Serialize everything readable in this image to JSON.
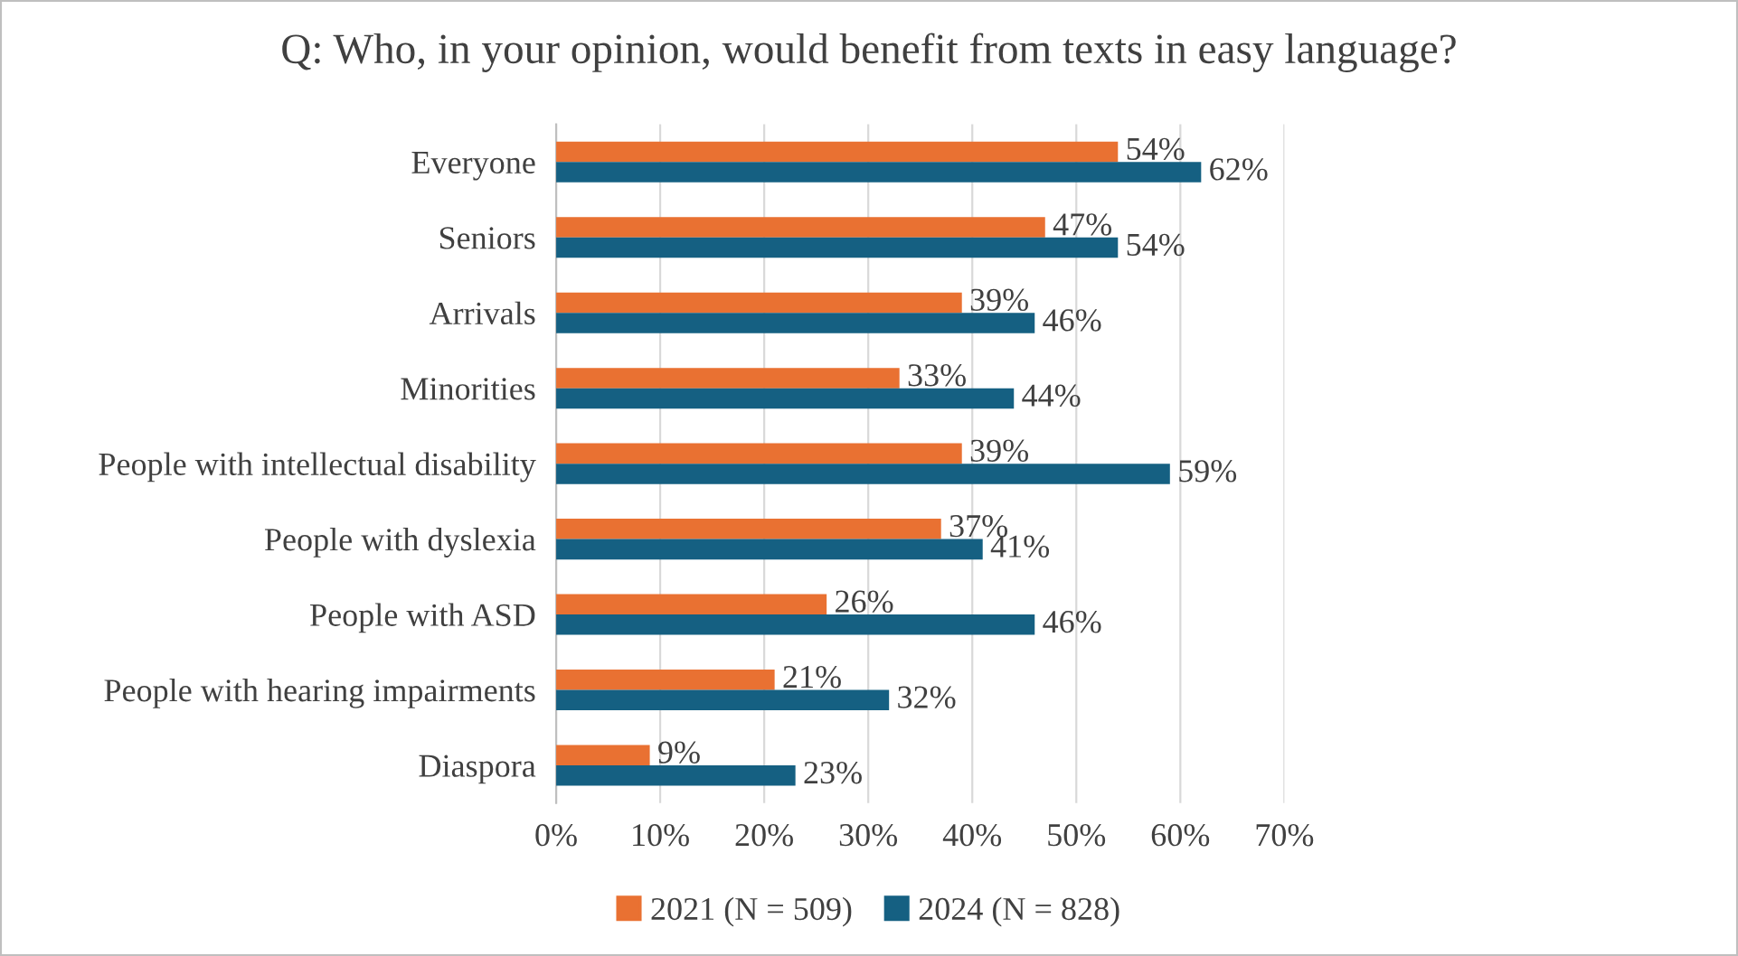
{
  "chart_data": {
    "type": "bar",
    "orientation": "horizontal",
    "title": "Q: Who, in your opinion, would benefit from texts in easy language?",
    "categories": [
      "Everyone",
      "Seniors",
      "Arrivals",
      "Minorities",
      "People with intellectual disability",
      "People with dyslexia",
      "People with ASD",
      "People with hearing impairments",
      "Diaspora"
    ],
    "series": [
      {
        "name": "2021 (N = 509)",
        "color": "#e97132",
        "values": [
          54,
          47,
          39,
          33,
          39,
          37,
          26,
          21,
          9
        ],
        "value_labels": [
          "54%",
          "47%",
          "39%",
          "33%",
          "39%",
          "37%",
          "26%",
          "21%",
          "9%"
        ]
      },
      {
        "name": "2024 (N = 828)",
        "color": "#156082",
        "values": [
          62,
          54,
          46,
          44,
          59,
          41,
          46,
          32,
          23
        ],
        "value_labels": [
          "62%",
          "54%",
          "46%",
          "44%",
          "59%",
          "41%",
          "46%",
          "32%",
          "23%"
        ]
      }
    ],
    "xlim": [
      0,
      70
    ],
    "xticks": [
      {
        "value": 0,
        "label": "0%"
      },
      {
        "value": 10,
        "label": "10%"
      },
      {
        "value": 20,
        "label": "20%"
      },
      {
        "value": 30,
        "label": "30%"
      },
      {
        "value": 40,
        "label": "40%"
      },
      {
        "value": 50,
        "label": "50%"
      },
      {
        "value": 60,
        "label": "60%"
      },
      {
        "value": 70,
        "label": "70%"
      }
    ],
    "grid": "x",
    "legend": "bottom"
  }
}
